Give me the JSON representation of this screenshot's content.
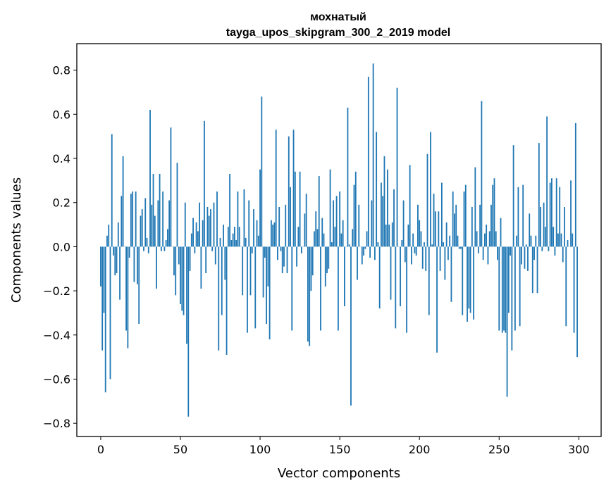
{
  "chart_data": {
    "type": "bar",
    "title": "мохнатый",
    "subtitle": "tayga_upos_skipgram_300_2_2019 model",
    "xlabel": "Vector components",
    "ylabel": "Components values",
    "xlim": [
      -15,
      314
    ],
    "ylim": [
      -0.86,
      0.92
    ],
    "xticks": [
      0,
      50,
      100,
      150,
      200,
      250,
      300
    ],
    "xtick_labels": [
      "0",
      "50",
      "100",
      "150",
      "200",
      "250",
      "300"
    ],
    "yticks": [
      -0.8,
      -0.6,
      -0.4,
      -0.2,
      0.0,
      0.2,
      0.4,
      0.6,
      0.8
    ],
    "ytick_labels": [
      "−0.8",
      "−0.6",
      "−0.4",
      "−0.2",
      "0.0",
      "0.2",
      "0.4",
      "0.6",
      "0.8"
    ],
    "grid": false,
    "color": "#1f77b4",
    "x_start": 0,
    "values": [
      -0.18,
      -0.47,
      -0.3,
      -0.66,
      0.05,
      0.1,
      -0.6,
      0.51,
      -0.04,
      -0.13,
      -0.12,
      0.11,
      -0.24,
      0.23,
      0.41,
      0.0,
      -0.38,
      -0.46,
      -0.05,
      0.24,
      0.25,
      -0.16,
      0.25,
      -0.17,
      -0.35,
      0.14,
      0.17,
      -0.02,
      0.22,
      0.04,
      -0.03,
      0.62,
      0.19,
      0.33,
      0.14,
      -0.19,
      0.21,
      0.33,
      -0.02,
      0.25,
      -0.02,
      0.03,
      0.08,
      0.21,
      0.54,
      0.0,
      -0.13,
      -0.22,
      0.38,
      -0.08,
      -0.26,
      -0.29,
      -0.31,
      0.2,
      -0.44,
      -0.77,
      -0.11,
      0.06,
      0.13,
      -0.03,
      0.11,
      0.07,
      0.2,
      -0.19,
      0.12,
      0.57,
      -0.12,
      0.18,
      0.14,
      0.17,
      -0.02,
      0.2,
      -0.08,
      0.25,
      -0.47,
      0.04,
      -0.31,
      0.1,
      -0.15,
      -0.49,
      0.09,
      0.33,
      0.03,
      0.06,
      0.09,
      0.03,
      0.25,
      0.09,
      0.0,
      -0.22,
      0.26,
      0.04,
      -0.39,
      0.21,
      -0.22,
      -0.03,
      0.17,
      -0.37,
      0.12,
      0.05,
      0.35,
      0.68,
      -0.23,
      -0.05,
      -0.35,
      -0.18,
      -0.42,
      0.12,
      0.1,
      0.11,
      0.53,
      -0.06,
      0.18,
      -0.02,
      -0.12,
      -0.09,
      0.19,
      -0.12,
      0.5,
      0.27,
      -0.38,
      0.53,
      0.34,
      -0.09,
      0.09,
      0.34,
      -0.03,
      0.0,
      0.15,
      0.24,
      -0.43,
      -0.45,
      -0.2,
      -0.13,
      0.07,
      0.16,
      0.08,
      0.32,
      -0.38,
      0.13,
      0.06,
      -0.18,
      -0.12,
      -0.1,
      0.35,
      0.02,
      0.21,
      0.09,
      0.23,
      -0.38,
      0.25,
      0.06,
      0.12,
      -0.27,
      0.0,
      0.63,
      0.01,
      -0.72,
      0.08,
      0.28,
      0.34,
      -0.15,
      0.19,
      0.0,
      -0.08,
      -0.04,
      -0.01,
      0.07,
      0.77,
      -0.05,
      0.21,
      0.83,
      -0.06,
      0.52,
      0.02,
      -0.28,
      0.29,
      0.23,
      0.41,
      0.1,
      0.35,
      0.1,
      -0.24,
      0.11,
      0.26,
      -0.37,
      0.72,
      0.0,
      -0.27,
      0.03,
      0.21,
      -0.07,
      -0.39,
      0.1,
      0.37,
      -0.08,
      0.06,
      -0.03,
      -0.04,
      0.19,
      0.12,
      0.07,
      -0.1,
      0.02,
      -0.11,
      0.42,
      -0.31,
      0.52,
      0.01,
      0.24,
      0.16,
      -0.48,
      0.16,
      -0.11,
      0.29,
      0.02,
      -0.15,
      0.11,
      -0.06,
      0.05,
      -0.25,
      0.25,
      0.15,
      0.19,
      0.05,
      -0.01,
      -0.01,
      -0.31,
      0.25,
      0.28,
      -0.34,
      -0.28,
      -0.3,
      0.18,
      -0.33,
      0.36,
      0.07,
      -0.03,
      0.19,
      0.66,
      -0.06,
      0.06,
      0.1,
      -0.08,
      0.07,
      0.19,
      0.28,
      0.31,
      0.07,
      -0.06,
      -0.38,
      0.13,
      -0.39,
      -0.38,
      -0.39,
      -0.68,
      -0.3,
      -0.04,
      -0.47,
      0.46,
      -0.38,
      0.05,
      0.27,
      -0.36,
      -0.08,
      0.28,
      -0.1,
      0.01,
      -0.11,
      0.15,
      0.05,
      -0.21,
      -0.06,
      0.05,
      -0.21,
      0.47,
      0.18,
      -0.02,
      0.2,
      0.09,
      0.59,
      -0.02,
      0.29,
      0.31,
      0.09,
      -0.04,
      0.31,
      0.06,
      0.27,
      0.06,
      -0.07,
      0.18,
      -0.36,
      0.03,
      0.0,
      0.3,
      0.06,
      -0.39,
      0.56,
      -0.5
    ]
  }
}
